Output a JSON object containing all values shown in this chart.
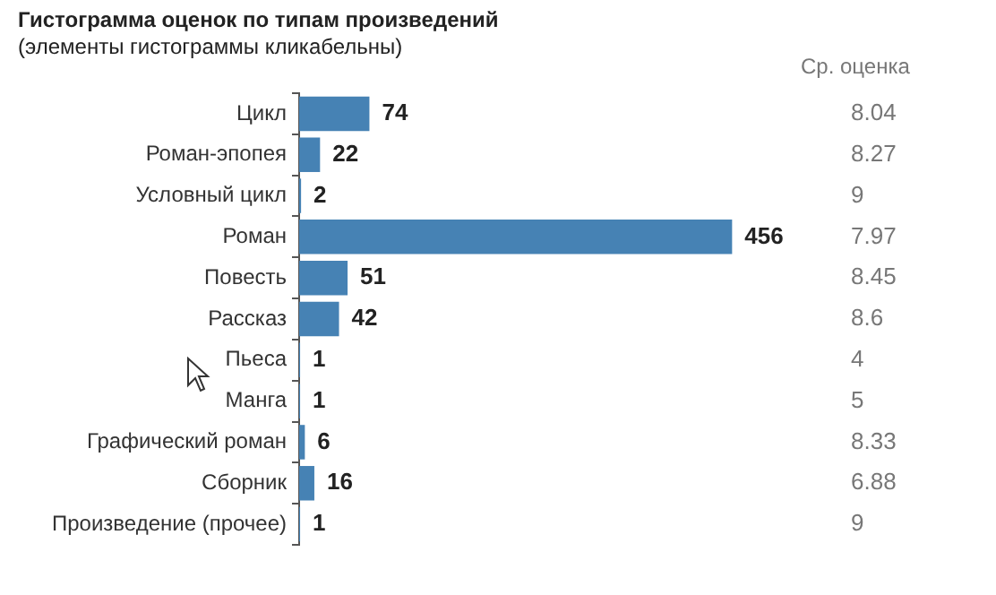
{
  "chart_data": {
    "type": "bar",
    "orientation": "horizontal",
    "title": "Гистограмма оценок по типам произведений",
    "subtitle": "(элементы гистограммы кликабельны)",
    "categories": [
      "Цикл",
      "Роман-эпопея",
      "Условный цикл",
      "Роман",
      "Повесть",
      "Рассказ",
      "Пьеса",
      "Манга",
      "Графический роман",
      "Сборник",
      "Произведение (прочее)"
    ],
    "values": [
      74,
      22,
      2,
      456,
      51,
      42,
      1,
      1,
      6,
      16,
      1
    ],
    "color": "#4682b4",
    "tick_labels": "y",
    "data_labels": true,
    "grid": false,
    "legend": false,
    "annotations": [
      "Ср. оценка",
      "8.04",
      "8.27",
      "9",
      "7.97",
      "8.45",
      "8.6",
      "4",
      "5",
      "8.33",
      "6.88",
      "9"
    ]
  }
}
